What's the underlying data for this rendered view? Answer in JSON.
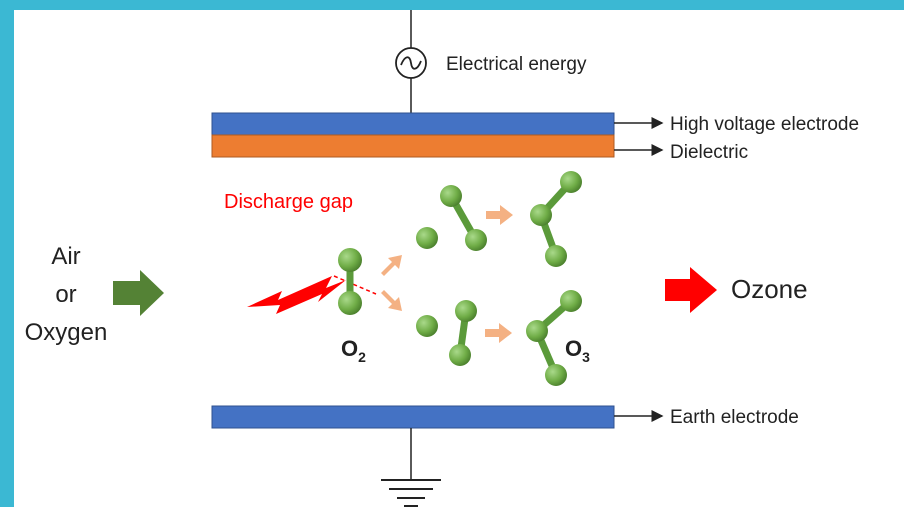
{
  "labels": {
    "electrical_energy": "Electrical energy",
    "high_voltage_electrode": "High voltage electrode",
    "dielectric": "Dielectric",
    "discharge_gap": "Discharge gap",
    "input_line1": "Air",
    "input_line2": "or",
    "input_line3": "Oxygen",
    "output": "Ozone",
    "o2_main": "O",
    "o2_sub": "2",
    "o3_main": "O",
    "o3_sub": "3",
    "earth_electrode": "Earth electrode"
  },
  "colors": {
    "frame_border": "#3bb8d3",
    "electrode_blue": "#4472c4",
    "dielectric_orange": "#ed7d31",
    "molecule_green": "#70ad47",
    "input_arrow_green": "#548235",
    "output_arrow_red": "#ff0000",
    "discharge_text_red": "#ff0000",
    "reaction_arrow_peach": "#f4b183"
  },
  "icons": {
    "ac_source": "ac-source-icon",
    "ground": "ground-icon",
    "spark": "lightning-spark-icon"
  }
}
